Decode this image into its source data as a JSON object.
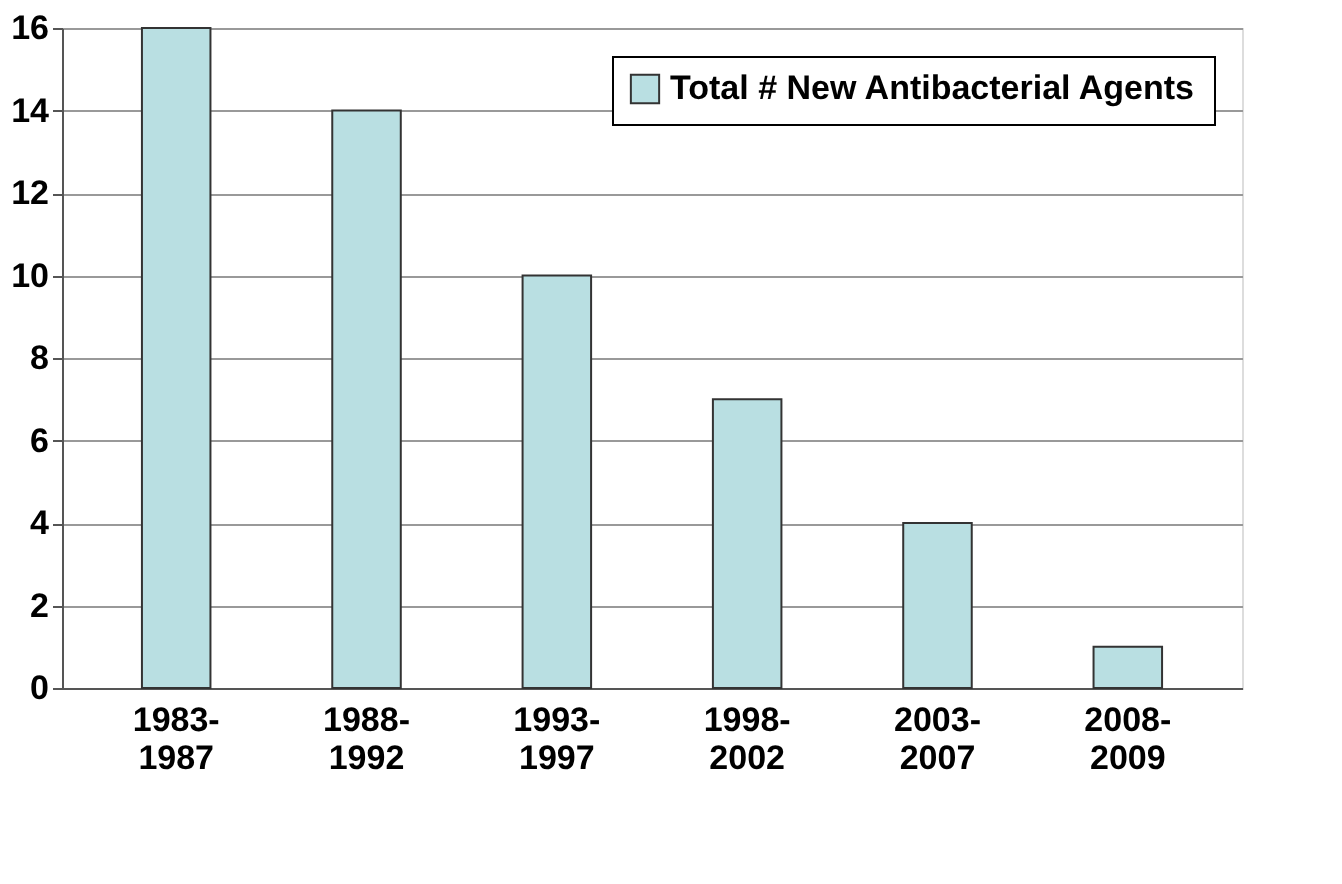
{
  "chart_data": {
    "type": "bar",
    "categories": [
      "1983-\n1987",
      "1988-\n1992",
      "1993-\n1997",
      "1998-\n2002",
      "2003-\n2007",
      "2008-\n2009"
    ],
    "series": [
      {
        "name": "Total # New Antibacterial Agents",
        "color": "#b9dfe2",
        "values": [
          16,
          14,
          10,
          7,
          4,
          1
        ]
      }
    ],
    "ylim": [
      0,
      16
    ],
    "yticks": [
      0,
      2,
      4,
      6,
      8,
      10,
      12,
      14,
      16
    ],
    "grid": "y",
    "legend": "top right"
  }
}
